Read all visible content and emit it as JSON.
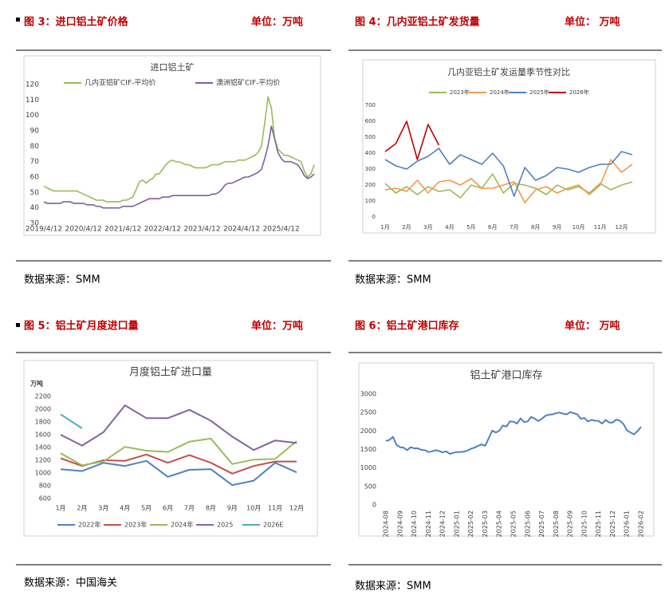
{
  "panels": [
    {
      "title": "图 3：进口铝土矿价格",
      "unit": "单位：万吨",
      "source": "数据来源：SMM"
    },
    {
      "title": "图 4：几内亚铝土矿发货量",
      "unit": "单位：  万吨",
      "source": "数据来源：SMM"
    },
    {
      "title": "图 5：铝土矿月度进口量",
      "unit": "单位：万吨",
      "source": "数据来源：中国海关"
    },
    {
      "title": "图 6：铝土矿港口库存",
      "unit": "单位：  万吨",
      "source": "数据来源：SMM"
    }
  ],
  "chart_data": [
    {
      "type": "line",
      "title": "进口铝土矿",
      "categories": [
        "2019/4/12",
        null,
        null,
        null,
        null,
        null,
        null,
        null,
        null,
        null,
        null,
        null,
        "2020/4/12",
        null,
        null,
        null,
        null,
        null,
        null,
        null,
        null,
        null,
        null,
        null,
        "2021/4/12",
        null,
        null,
        null,
        null,
        null,
        null,
        null,
        null,
        null,
        null,
        null,
        "2022/4/12",
        null,
        null,
        null,
        null,
        null,
        null,
        null,
        null,
        null,
        null,
        null,
        "2023/4/12",
        null,
        null,
        null,
        null,
        null,
        null,
        null,
        null,
        null,
        null,
        null,
        "2024/4/12",
        null,
        null,
        null,
        null,
        null,
        null,
        null,
        null,
        null,
        null,
        null,
        "2025/4/12",
        null,
        null,
        null,
        null,
        null,
        null,
        null,
        null,
        null,
        null
      ],
      "series": [
        {
          "name": "几内亚铝矿CIF-平均价",
          "color": "#9bbb59",
          "values": [
            54,
            53,
            52,
            51,
            51,
            51,
            51,
            51,
            51,
            51,
            51,
            50,
            49,
            48,
            47,
            46,
            45,
            45,
            45,
            44,
            44,
            44,
            44,
            44,
            45,
            45,
            46,
            47,
            52,
            57,
            58,
            56,
            58,
            59,
            62,
            62,
            65,
            68,
            70,
            71,
            70,
            70,
            69,
            68,
            68,
            67,
            66,
            66,
            66,
            66,
            67,
            68,
            68,
            68,
            69,
            70,
            70,
            70,
            70,
            71,
            71,
            71,
            72,
            73,
            74,
            76,
            80,
            95,
            112,
            105,
            85,
            78,
            76,
            74,
            74,
            73,
            72,
            71,
            70,
            64,
            60,
            62,
            68
          ]
        },
        {
          "name": "澳洲铝矿CIF-平均价",
          "color": "#7f5f9f",
          "values": [
            44,
            43,
            43,
            43,
            43,
            43,
            44,
            44,
            44,
            43,
            43,
            43,
            43,
            42,
            42,
            42,
            41,
            41,
            40,
            40,
            40,
            40,
            40,
            40,
            41,
            41,
            41,
            41,
            42,
            43,
            44,
            45,
            46,
            46,
            46,
            46,
            47,
            47,
            47,
            48,
            48,
            48,
            48,
            48,
            48,
            48,
            48,
            48,
            48,
            48,
            48,
            49,
            49,
            50,
            52,
            55,
            56,
            56,
            57,
            58,
            59,
            60,
            60,
            61,
            62,
            63,
            65,
            72,
            80,
            93,
            85,
            76,
            72,
            70,
            70,
            70,
            69,
            68,
            65,
            61,
            59,
            60,
            62
          ]
        }
      ],
      "ylim": [
        30,
        120
      ],
      "yticks": [
        30,
        40,
        50,
        60,
        70,
        80,
        90,
        100,
        110,
        120
      ],
      "grid": false,
      "legend": "top"
    },
    {
      "type": "line",
      "title": "几内亚铝土矿发运量季节性对比",
      "categories": [
        "1月",
        null,
        "2月",
        null,
        "3月",
        null,
        "4月",
        null,
        "5月",
        null,
        "6月",
        null,
        "7月",
        null,
        "8月",
        null,
        "9月",
        null,
        "10月",
        null,
        "11月",
        null,
        "12月",
        null
      ],
      "series": [
        {
          "name": "2023年",
          "color": "#9bbb59",
          "values": [
            210,
            150,
            190,
            140,
            190,
            160,
            170,
            120,
            200,
            180,
            270,
            150,
            210,
            200,
            180,
            140,
            200,
            170,
            190,
            150,
            210,
            170,
            200,
            220
          ]
        },
        {
          "name": "2024年",
          "color": "#f79646",
          "values": [
            170,
            180,
            160,
            230,
            150,
            220,
            230,
            200,
            240,
            180,
            180,
            200,
            220,
            90,
            170,
            190,
            150,
            180,
            200,
            140,
            200,
            360,
            280,
            330
          ]
        },
        {
          "name": "2025年",
          "color": "#4f81bd",
          "values": [
            360,
            320,
            300,
            350,
            380,
            430,
            330,
            390,
            360,
            330,
            400,
            320,
            130,
            310,
            230,
            260,
            310,
            300,
            280,
            310,
            330,
            330,
            410,
            390
          ]
        },
        {
          "name": "2026年",
          "color": "#c00000",
          "values": [
            410,
            460,
            600,
            360,
            580,
            450,
            null,
            null,
            null,
            null,
            null,
            null,
            null,
            null,
            null,
            null,
            null,
            null,
            null,
            null,
            null,
            null,
            null,
            null
          ]
        }
      ],
      "ylim": [
        0,
        700
      ],
      "yticks": [
        0,
        100,
        200,
        300,
        400,
        500,
        600,
        700
      ],
      "grid": false,
      "legend": "top"
    },
    {
      "type": "line",
      "title": "月度铝土矿进口量",
      "ylabel": "万吨",
      "categories": [
        "1月",
        "2月",
        "3月",
        "4月",
        "5月",
        "6月",
        "7月",
        "8月",
        "9月",
        "10月",
        "11月",
        "12月"
      ],
      "series": [
        {
          "name": "2022年",
          "color": "#4f81bd",
          "values": [
            1060,
            1030,
            1160,
            1110,
            1190,
            940,
            1050,
            1060,
            810,
            880,
            1160,
            1010
          ]
        },
        {
          "name": "2023年",
          "color": "#c0504d",
          "values": [
            1230,
            1110,
            1200,
            1190,
            1290,
            1160,
            1280,
            1160,
            990,
            1110,
            1180,
            1180
          ]
        },
        {
          "name": "2024年",
          "color": "#9bbb59",
          "values": [
            1310,
            1120,
            1180,
            1410,
            1350,
            1330,
            1490,
            1540,
            1140,
            1210,
            1220,
            1500
          ]
        },
        {
          "name": "2025",
          "color": "#8064a2",
          "values": [
            1600,
            1430,
            1640,
            2060,
            1860,
            1860,
            1990,
            1820,
            1570,
            1360,
            1510,
            1470
          ]
        },
        {
          "name": "2026E",
          "color": "#4bacc6",
          "values": [
            1920,
            1700,
            null,
            null,
            null,
            null,
            null,
            null,
            null,
            null,
            null,
            null
          ]
        }
      ],
      "ylim": [
        600,
        2200
      ],
      "yticks": [
        600,
        800,
        1000,
        1200,
        1400,
        1600,
        1800,
        2000,
        2200
      ],
      "grid": false,
      "legend": "bottom"
    },
    {
      "type": "line",
      "title": "铝土矿港口库存",
      "categories": [
        "2024-08",
        null,
        null,
        null,
        "2024-09",
        null,
        null,
        null,
        "2024-10",
        null,
        null,
        null,
        "2024-11",
        null,
        null,
        null,
        "2024-12",
        null,
        null,
        null,
        "2025-01",
        null,
        null,
        null,
        "2025-02",
        null,
        null,
        null,
        "2025-03",
        null,
        null,
        null,
        "2025-04",
        null,
        null,
        null,
        "2025-05",
        null,
        null,
        null,
        "2025-06",
        null,
        null,
        null,
        "2025-07",
        null,
        null,
        null,
        "2025-08",
        null,
        null,
        null,
        "2025-09",
        null,
        null,
        null,
        "2025-10",
        null,
        null,
        null,
        "2025-11",
        null,
        null,
        null,
        "2025-12",
        null,
        null,
        null,
        "2026-01",
        null,
        null,
        null,
        "2026-02"
      ],
      "values": [
        1730,
        1760,
        1840,
        1620,
        1560,
        1550,
        1480,
        1560,
        1530,
        1530,
        1490,
        1480,
        1430,
        1450,
        1480,
        1460,
        1420,
        1450,
        1380,
        1410,
        1430,
        1430,
        1440,
        1470,
        1520,
        1550,
        1600,
        1640,
        1600,
        1800,
        2010,
        1960,
        2010,
        2150,
        2120,
        2260,
        2250,
        2200,
        2340,
        2240,
        2260,
        2380,
        2330,
        2270,
        2330,
        2410,
        2440,
        2450,
        2480,
        2500,
        2470,
        2450,
        2510,
        2480,
        2450,
        2330,
        2350,
        2260,
        2300,
        2280,
        2270,
        2200,
        2300,
        2230,
        2230,
        2310,
        2280,
        2190,
        2020,
        1960,
        1910,
        2000,
        2110
      ],
      "color": "#4f81bd",
      "ylim": [
        0,
        3000
      ],
      "yticks": [
        0,
        500,
        1000,
        1500,
        2000,
        2500,
        3000
      ],
      "grid": false,
      "xtick_rotation": 90
    }
  ]
}
